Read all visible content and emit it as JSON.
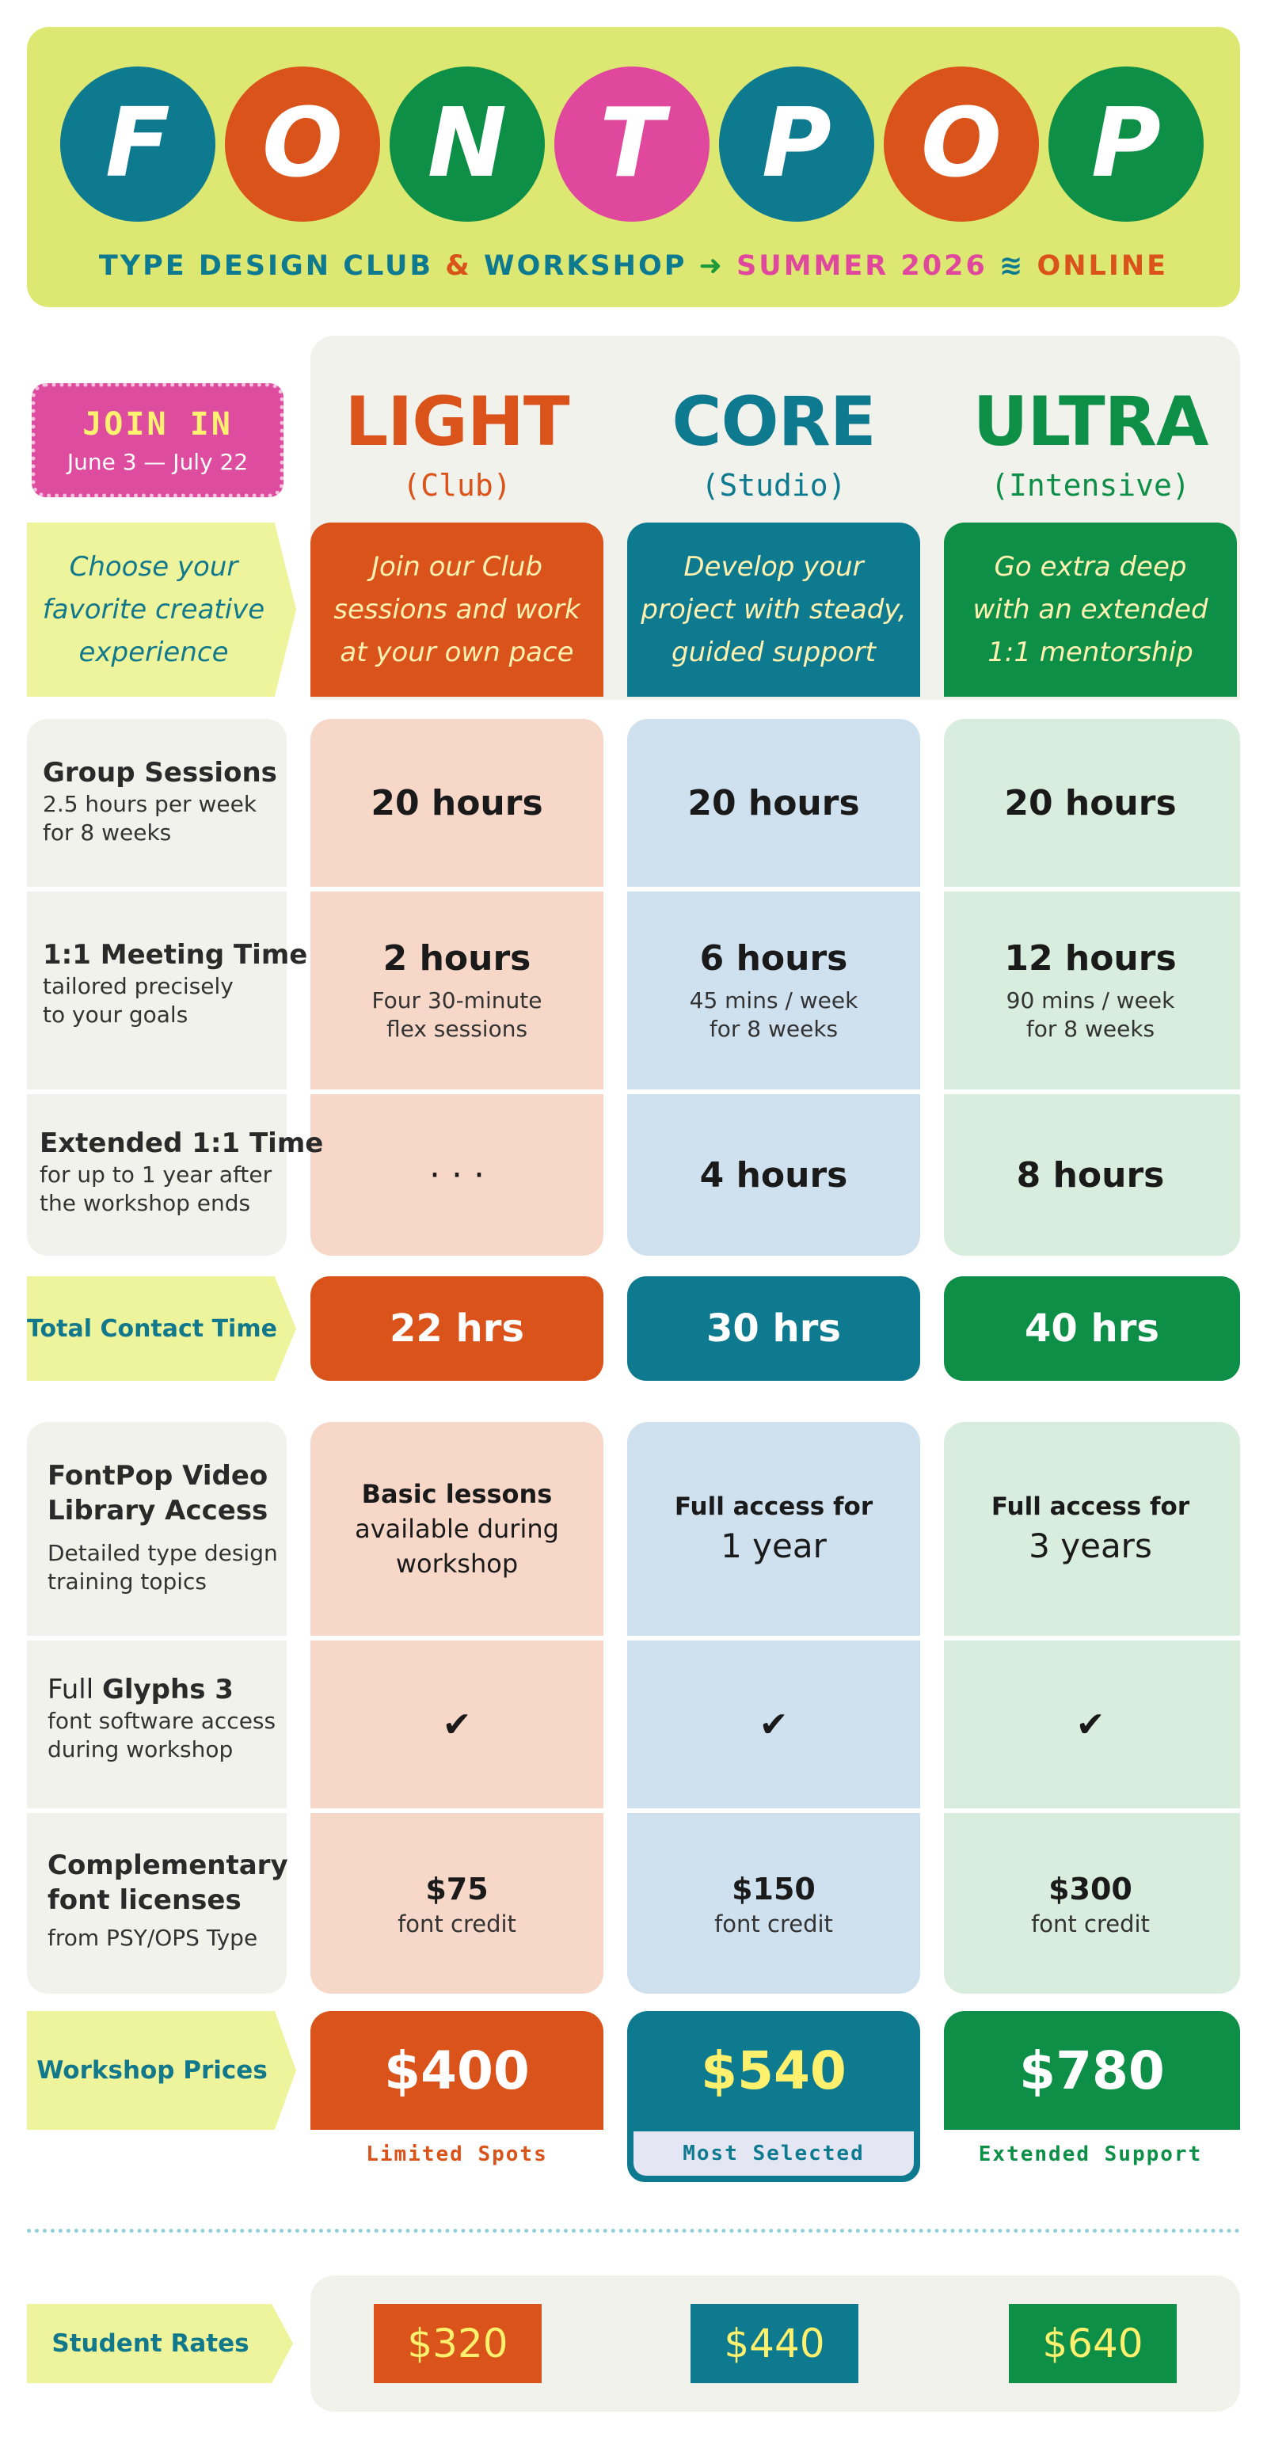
{
  "header": {
    "logo_letters": [
      {
        "char": "F",
        "color": "#0e7a8f"
      },
      {
        "char": "O",
        "color": "#d9531b"
      },
      {
        "char": "N",
        "color": "#0d8f48"
      },
      {
        "char": "T",
        "color": "#e0489d"
      },
      {
        "char": "P",
        "color": "#0e7a8f"
      },
      {
        "char": "O",
        "color": "#d9531b"
      },
      {
        "char": "P",
        "color": "#0d8f48"
      }
    ],
    "tagline_1": "TYPE DESIGN CLUB",
    "tagline_amp": "&",
    "tagline_2": "WORKSHOP",
    "tagline_arrow": "➜",
    "tagline_3": "SUMMER 2026",
    "tagline_wifi": "≋",
    "tagline_4": "ONLINE"
  },
  "join": {
    "title": "JOIN IN",
    "dates": "June 3 — July 22"
  },
  "intro_label": [
    "Choose your",
    "favorite creative",
    "experience"
  ],
  "tiers": [
    {
      "name": "LIGHT",
      "sub": "(Club)",
      "color": "#d9531b",
      "desc": [
        "Join our Club",
        "sessions and work",
        "at your own pace"
      ]
    },
    {
      "name": "CORE",
      "sub": "(Studio)",
      "color": "#0e7a8f",
      "desc": [
        "Develop your",
        "project with steady,",
        "guided support"
      ]
    },
    {
      "name": "ULTRA",
      "sub": "(Intensive)",
      "color": "#0d8f48",
      "desc": [
        "Go extra deep",
        "with an extended",
        "1:1 mentorship"
      ]
    }
  ],
  "features": {
    "group": {
      "title": "Group Sessions",
      "sub": [
        "2.5 hours per week",
        "for 8 weeks"
      ],
      "values": [
        "20 hours",
        "20 hours",
        "20 hours"
      ]
    },
    "meeting": {
      "title": "1:1 Meeting Time",
      "sub": [
        "tailored precisely",
        "to your goals"
      ],
      "values": [
        "2 hours",
        "6 hours",
        "12 hours"
      ],
      "details": [
        [
          "Four 30-minute",
          "flex sessions"
        ],
        [
          "45 mins / week",
          "for 8 weeks"
        ],
        [
          "90 mins / week",
          "for 8 weeks"
        ]
      ]
    },
    "extended": {
      "title": "Extended 1:1 Time",
      "sub": [
        "for up to 1 year after",
        "the workshop ends"
      ],
      "values": [
        "· · ·",
        "4 hours",
        "8 hours"
      ]
    },
    "total": {
      "label": "Total Contact Time",
      "values": [
        "22 hrs",
        "30 hrs",
        "40 hrs"
      ]
    },
    "video": {
      "title": [
        "FontPop Video",
        "Library Access"
      ],
      "sub": [
        "Detailed type design",
        "training topics"
      ],
      "light": [
        "Basic lessons",
        "available during",
        "workshop"
      ],
      "core": {
        "line1": "Full access for",
        "line2": "1 year"
      },
      "ultra": {
        "line1": "Full access for",
        "line2": "3 years"
      }
    },
    "glyphs": {
      "pre": "Full",
      "bold": "Glyphs 3",
      "sub": [
        "font software access",
        "during workshop"
      ],
      "check": "✔"
    },
    "licenses": {
      "title": [
        "Complementary",
        "font licenses"
      ],
      "sub": "from PSY/OPS Type",
      "values": [
        "$75",
        "$150",
        "$300"
      ],
      "unit": "font credit"
    }
  },
  "prices": {
    "label": "Workshop Prices",
    "values": [
      "$400",
      "$540",
      "$780"
    ],
    "notes": [
      "Limited Spots",
      "Most Selected",
      "Extended Support"
    ]
  },
  "students": {
    "label": "Student Rates",
    "values": [
      "$320",
      "$440",
      "$640"
    ]
  }
}
